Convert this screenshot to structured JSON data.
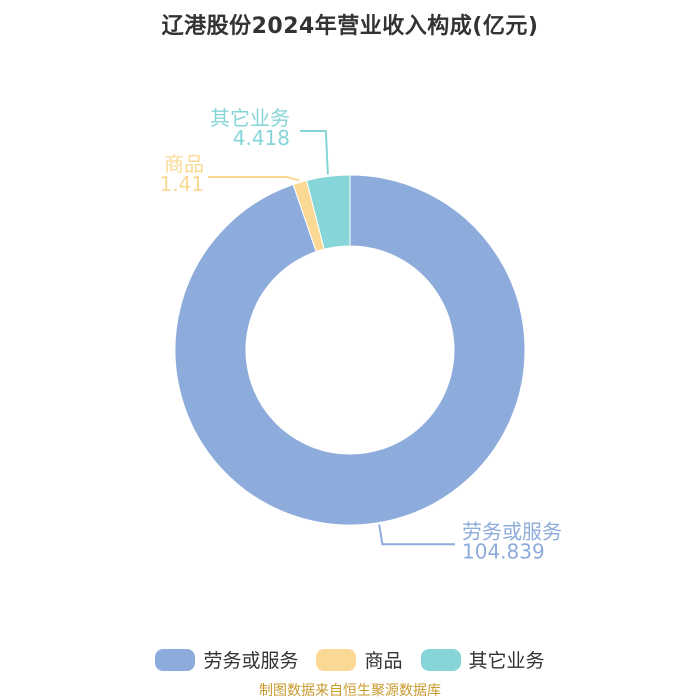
{
  "colors": {
    "services": "#8eacdb",
    "goods": "#fbd995",
    "other": "#86d5d8"
  },
  "chart_data": {
    "type": "pie",
    "title": "辽港股份2024年营业收入构成(亿元)",
    "categories": [
      "劳务或服务",
      "商品",
      "其它业务"
    ],
    "values": [
      104.839,
      1.41,
      4.418
    ],
    "value_labels": [
      "104.839",
      "1.41",
      "4.418"
    ],
    "legend_position": "bottom"
  },
  "source": "制图数据来自恒生聚源数据库"
}
